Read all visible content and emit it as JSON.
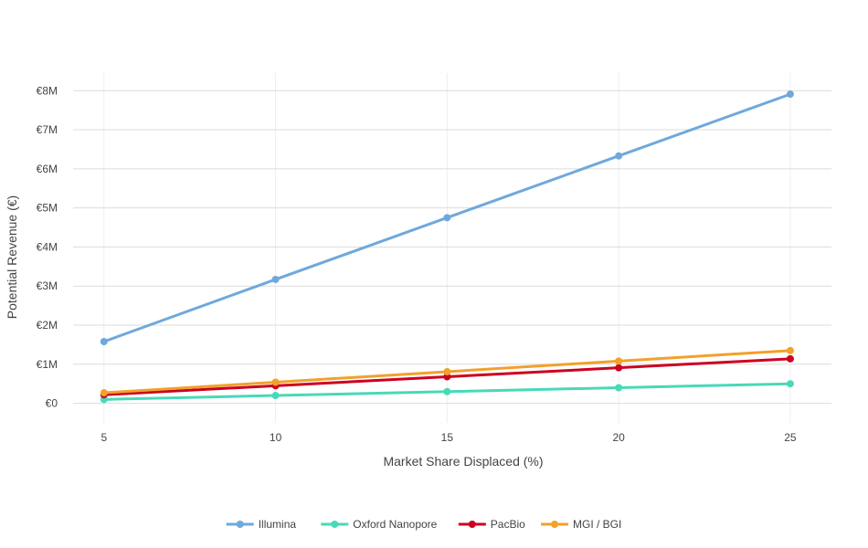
{
  "chart_data": {
    "type": "line",
    "title": "",
    "xlabel": "Market Share Displaced (%)",
    "ylabel": "Potential Revenue (€)",
    "x": [
      5,
      10,
      15,
      20,
      25
    ],
    "x_tick_labels": [
      "5",
      "10",
      "15",
      "20",
      "25"
    ],
    "y_ticks": [
      0,
      1,
      2,
      3,
      4,
      5,
      6,
      7,
      8
    ],
    "y_tick_labels": [
      "€0",
      "€1M",
      "€2M",
      "€3M",
      "€4M",
      "€5M",
      "€6M",
      "€7M",
      "€8M"
    ],
    "xlim": [
      4.1,
      26.2
    ],
    "ylim": [
      -0.5,
      8.45
    ],
    "y_unit": "€M",
    "grid": true,
    "legend_position": "bottom-center",
    "series": [
      {
        "name": "Illumina",
        "color": "#6fa8dc",
        "values": [
          1.58,
          3.17,
          4.75,
          6.33,
          7.91
        ]
      },
      {
        "name": "Oxford Nanopore",
        "color": "#48d9b8",
        "values": [
          0.1,
          0.2,
          0.3,
          0.4,
          0.5
        ]
      },
      {
        "name": "PacBio",
        "color": "#cc0022",
        "values": [
          0.22,
          0.45,
          0.68,
          0.91,
          1.14
        ]
      },
      {
        "name": "MGI / BGI",
        "color": "#f2a12a",
        "values": [
          0.27,
          0.54,
          0.81,
          1.08,
          1.35
        ]
      }
    ]
  }
}
